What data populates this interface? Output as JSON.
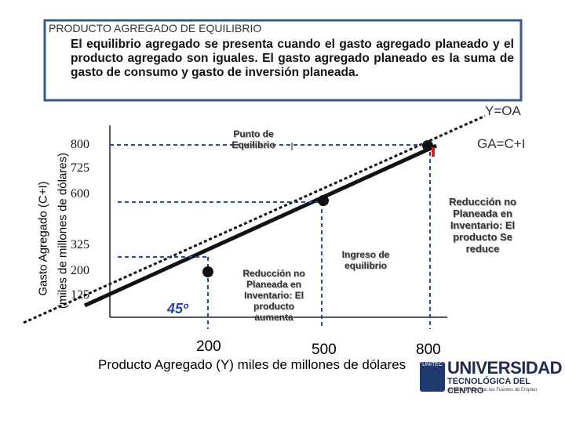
{
  "slide": {
    "title": "PRODUCTO AGREGADO DE EQUILIBRIO",
    "paragraph": "El equilibrio agregado se presenta cuando el gasto agregado planeado y el producto agregado son iguales. El gasto agregado planeado es la suma de gasto de consumo y gasto de inversión planeada.",
    "y_axis_title": "Gasto Agregado (C+I)",
    "y_axis_subtitle": "(miles de millones de dólares)",
    "y_ticks": [
      "800",
      "725",
      "600",
      "325",
      "200",
      "125"
    ],
    "x_ticks": [
      "200",
      "500",
      "800"
    ],
    "x_axis_title": "Producto Agregado (Y) miles de millones de dólares",
    "line_labels": {
      "oa": "Y=OA",
      "ga": "GA=C+I",
      "angle": "45º"
    },
    "annotations": {
      "equilibrium_point": "Punto de Equilibrio",
      "equilibrium_income": "Ingreso de equilibrio",
      "left_note": "Reducción no Planeada en Inventario: El producto aumenta",
      "right_note": "Reducción no Planeada en Inventario: El producto Se reduce"
    },
    "logo": {
      "badge": "UNITEC",
      "name": "UNIVERSIDAD",
      "sub": "TECNOLÓGICA DEL CENTRO",
      "tagline": "Enlace directo con las Fuentes de Empleo"
    }
  }
}
